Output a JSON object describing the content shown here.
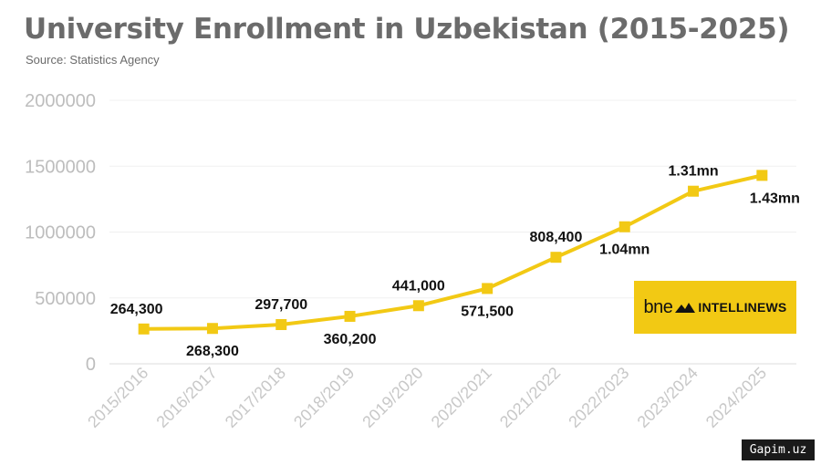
{
  "chart_data": {
    "type": "line",
    "title": "University Enrollment in Uzbekistan (2015-2025)",
    "subtitle": "Source: Statistics Agency",
    "xlabel": "",
    "ylabel": "",
    "ylim": [
      0,
      2000000
    ],
    "yticks": [
      "0",
      "500000",
      "1000000",
      "1500000",
      "2000000"
    ],
    "grid": true,
    "categories": [
      "2015/2016",
      "2016/2017",
      "2017/2018",
      "2018/2019",
      "2019/2020",
      "2020/2021",
      "2021/2022",
      "2022/2023",
      "2023/2024",
      "2024/2025"
    ],
    "series": [
      {
        "name": "University enrollment",
        "color": "#f2c914",
        "values": [
          264300,
          268300,
          297700,
          360200,
          441000,
          571500,
          808400,
          1040000,
          1310000,
          1430000
        ],
        "labels": [
          "264,300",
          "268,300",
          "297,700",
          "360,200",
          "441,000",
          "571,500",
          "808,400",
          "1.04mn",
          "1.31mn",
          "1.43mn"
        ],
        "label_positions": [
          "above",
          "below",
          "above",
          "below",
          "above",
          "below",
          "above",
          "below",
          "above",
          "below"
        ]
      }
    ]
  },
  "logo": {
    "bne": "bne",
    "name": "INTELLINEWS",
    "background": "#f2c914"
  },
  "watermark": {
    "text": "Gapim.uz"
  }
}
